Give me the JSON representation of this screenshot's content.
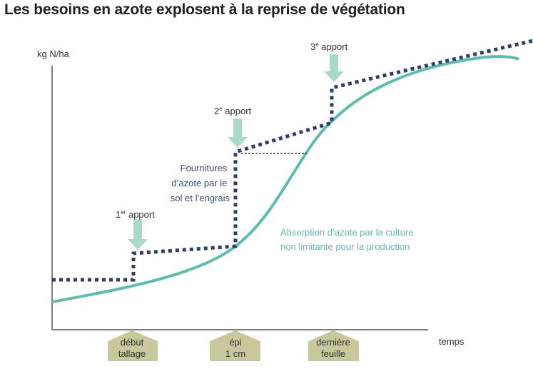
{
  "title": "Les besoins en azote explosent à la reprise de végétation",
  "y_axis_label": "kg N/ha",
  "x_axis_label": "temps",
  "apports": [
    {
      "num": "1",
      "sup": "er",
      "text": " apport"
    },
    {
      "num": "2",
      "sup": "e",
      "text": " apport"
    },
    {
      "num": "3",
      "sup": "e",
      "text": " apport"
    }
  ],
  "supply_label": [
    "Fournitures",
    "d’azote par le",
    "sol et l’engrais"
  ],
  "absorption_label": [
    "Absorption d’azote par la culture",
    "non limitante pour la production"
  ],
  "stages": [
    {
      "line1": "début",
      "line2": "tallage"
    },
    {
      "line1": "épi",
      "line2": "1 cm"
    },
    {
      "line1": "dernière",
      "line2": "feuille"
    }
  ],
  "colors": {
    "supply": "#2f3d6e",
    "absorption": "#5bbcb0",
    "arrow": "#a9d9c9",
    "stage_tag": "#c9c89c"
  }
}
